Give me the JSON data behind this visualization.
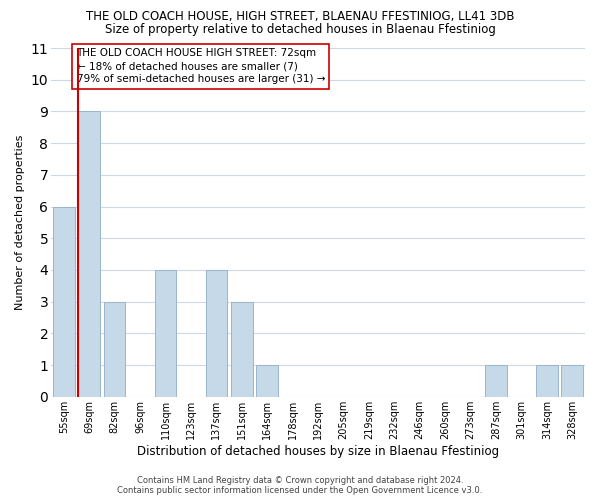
{
  "title": "THE OLD COACH HOUSE, HIGH STREET, BLAENAU FFESTINIOG, LL41 3DB",
  "subtitle": "Size of property relative to detached houses in Blaenau Ffestiniog",
  "xlabel": "Distribution of detached houses by size in Blaenau Ffestiniog",
  "ylabel": "Number of detached properties",
  "categories": [
    "55sqm",
    "69sqm",
    "82sqm",
    "96sqm",
    "110sqm",
    "123sqm",
    "137sqm",
    "151sqm",
    "164sqm",
    "178sqm",
    "192sqm",
    "205sqm",
    "219sqm",
    "232sqm",
    "246sqm",
    "260sqm",
    "273sqm",
    "287sqm",
    "301sqm",
    "314sqm",
    "328sqm"
  ],
  "values": [
    6,
    9,
    3,
    0,
    4,
    0,
    4,
    3,
    1,
    0,
    0,
    0,
    0,
    0,
    0,
    0,
    0,
    1,
    0,
    1,
    1
  ],
  "bar_color": "#c6d9e8",
  "bar_edge_color": "#9ab5cc",
  "vline_bar_index": 1,
  "vline_color": "#cc0000",
  "annotation_box_text": "THE OLD COACH HOUSE HIGH STREET: 72sqm\n← 18% of detached houses are smaller (7)\n79% of semi-detached houses are larger (31) →",
  "ylim": [
    0,
    11
  ],
  "yticks": [
    0,
    1,
    2,
    3,
    4,
    5,
    6,
    7,
    8,
    9,
    10,
    11
  ],
  "footer_line1": "Contains HM Land Registry data © Crown copyright and database right 2024.",
  "footer_line2": "Contains public sector information licensed under the Open Government Licence v3.0.",
  "title_fontsize": 8.5,
  "subtitle_fontsize": 8.5,
  "xlabel_fontsize": 8.5,
  "ylabel_fontsize": 8,
  "tick_fontsize": 7,
  "annotation_fontsize": 7.5,
  "footer_fontsize": 6,
  "grid_color": "#cdd9e5",
  "background_color": "#ffffff"
}
